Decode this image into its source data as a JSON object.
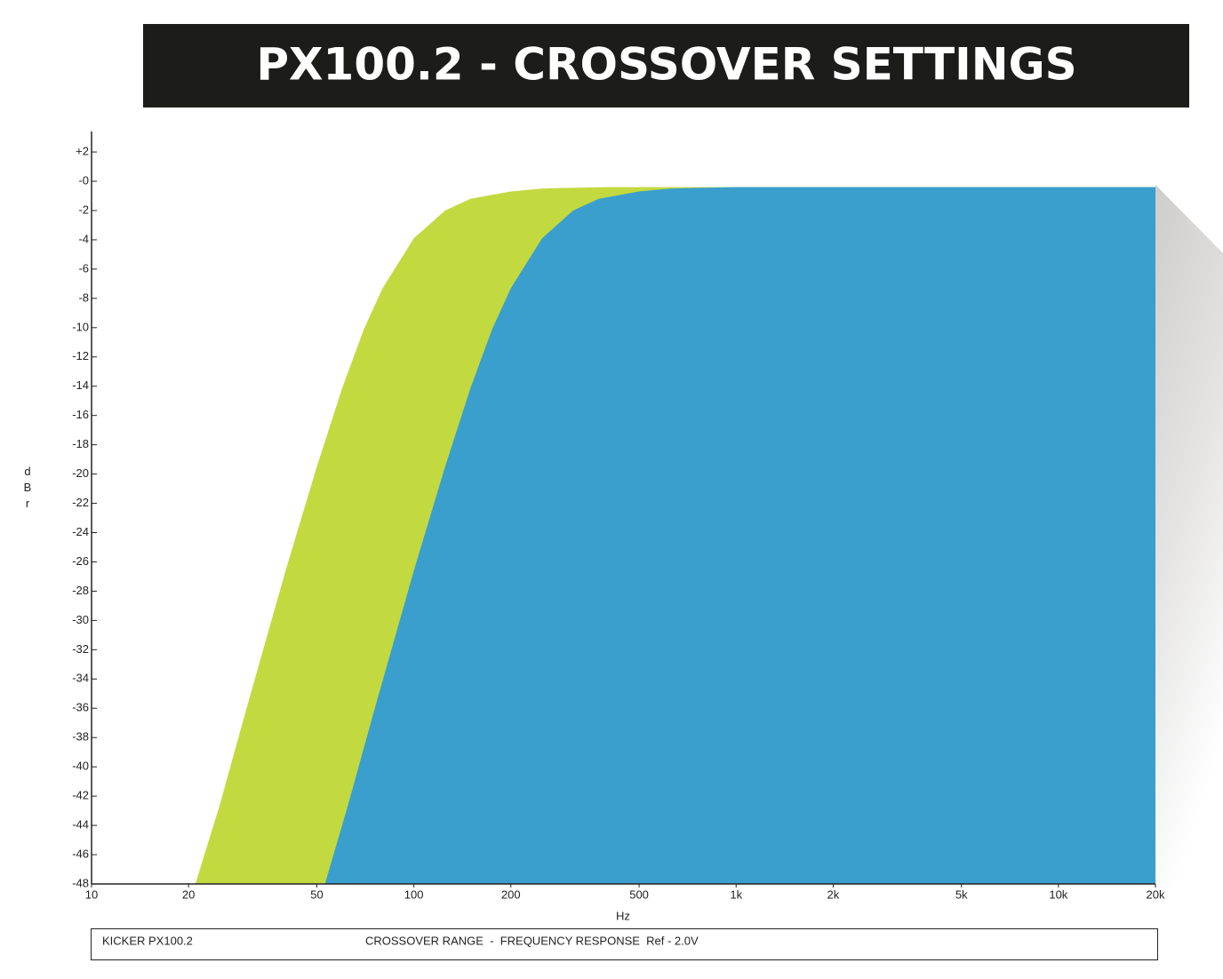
{
  "chart_data": {
    "type": "area",
    "title": "PX100.2 - CROSSOVER SETTINGS",
    "y_label": "dBr",
    "x_label": "Hz",
    "footer_left": "KICKER PX100.2",
    "footer_right": "CROSSOVER RANGE  -  FREQUENCY RESPONSE  Ref - 2.0V",
    "log_x": true,
    "xlim": [
      10,
      20000
    ],
    "xticks": [
      10,
      20,
      50,
      100,
      200,
      500,
      {
        "value": 1000,
        "label": "1k"
      },
      {
        "value": 2000,
        "label": "2k"
      },
      {
        "value": 5000,
        "label": "5k"
      },
      {
        "value": 10000,
        "label": "10k"
      },
      {
        "value": 20000,
        "label": "20k"
      }
    ],
    "ylim": [
      -48,
      3.4
    ],
    "yticks": [
      {
        "value": 2,
        "label": "+2"
      },
      {
        "value": 0,
        "label": "-0"
      },
      -2,
      -4,
      -6,
      -8,
      -10,
      -12,
      -14,
      -16,
      -18,
      -20,
      -22,
      -24,
      -26,
      -28,
      -30,
      -32,
      -34,
      -36,
      -38,
      -40,
      -42,
      -44,
      -46,
      -48
    ],
    "series": [
      {
        "color": "#c3d940",
        "x": [
          21,
          25,
          30,
          40,
          50,
          60,
          70,
          80,
          100,
          125,
          150,
          200,
          250,
          300,
          400,
          1000,
          5000,
          20000
        ],
        "values": [
          -48,
          -42.6,
          -36.3,
          -26.6,
          -19.5,
          -14.1,
          -10.1,
          -7.3,
          -3.9,
          -2.0,
          -1.2,
          -0.7,
          -0.5,
          -0.45,
          -0.4,
          -0.4,
          -0.4,
          -0.4
        ]
      },
      {
        "color": "#3a9fcd",
        "x": [
          53,
          62.5,
          75,
          100,
          125,
          150,
          175,
          200,
          250,
          312,
          375,
          500,
          625,
          750,
          1000,
          5000,
          20000
        ],
        "values": [
          -48,
          -42.6,
          -36.3,
          -26.6,
          -19.5,
          -14.1,
          -10.1,
          -7.3,
          -3.9,
          -2.0,
          -1.2,
          -0.7,
          -0.5,
          -0.45,
          -0.4,
          -0.4,
          -0.4
        ]
      }
    ]
  }
}
